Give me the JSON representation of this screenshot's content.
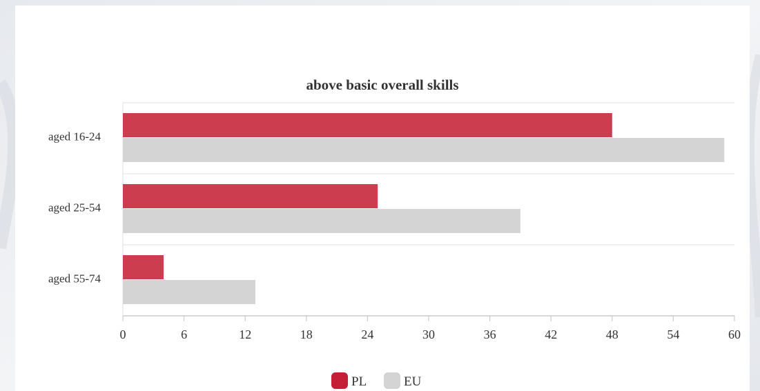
{
  "chart_data": {
    "type": "bar",
    "orientation": "horizontal",
    "title": "above basic overall skills",
    "categories": [
      "aged 16-24",
      "aged 25-54",
      "aged 55-74"
    ],
    "series": [
      {
        "name": "PL",
        "values": [
          48,
          25,
          4
        ],
        "color": "#cc3d50"
      },
      {
        "name": "EU",
        "values": [
          59,
          39,
          13
        ],
        "color": "#d4d4d4"
      }
    ],
    "xlim": [
      0,
      60
    ],
    "xticks": [
      0,
      6,
      12,
      18,
      24,
      30,
      36,
      42,
      48,
      54,
      60
    ],
    "grid": true,
    "legend_position": "bottom-center",
    "legend_swatch_colors": {
      "PL": "#c41f36",
      "EU": "#d4d4d4"
    }
  }
}
